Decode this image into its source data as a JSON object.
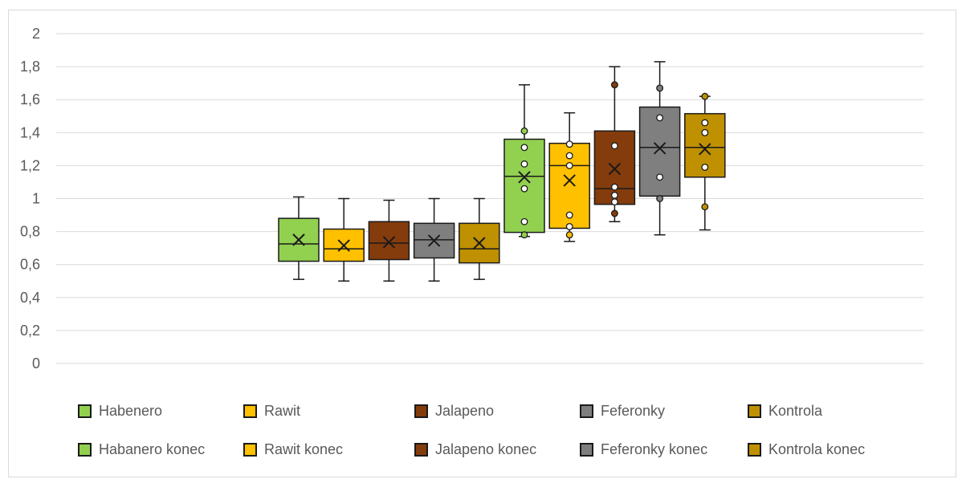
{
  "chart_data": {
    "type": "boxplot",
    "ylim": [
      0,
      2
    ],
    "y_ticks": [
      "0",
      "0,2",
      "0,4",
      "0,6",
      "0,8",
      "1",
      "1,2",
      "1,4",
      "1,6",
      "1,8",
      "2"
    ],
    "gridlines": true,
    "legend_position": "bottom",
    "series": [
      {
        "name": "Habenero",
        "color": "#92d050",
        "min": 0.51,
        "q1": 0.62,
        "median": 0.725,
        "q3": 0.88,
        "max": 1.01,
        "mean": 0.75,
        "outliers": []
      },
      {
        "name": "Rawit",
        "color": "#ffc000",
        "min": 0.5,
        "q1": 0.62,
        "median": 0.695,
        "q3": 0.815,
        "max": 1.0,
        "mean": 0.715,
        "outliers": []
      },
      {
        "name": "Jalapeno",
        "color": "#843c0c",
        "min": 0.5,
        "q1": 0.63,
        "median": 0.73,
        "q3": 0.86,
        "max": 0.99,
        "mean": 0.735,
        "outliers": []
      },
      {
        "name": "Feferonky",
        "color": "#7f7f7f",
        "min": 0.5,
        "q1": 0.64,
        "median": 0.75,
        "q3": 0.85,
        "max": 1.0,
        "mean": 0.745,
        "outliers": []
      },
      {
        "name": "Kontrola",
        "color": "#bf9000",
        "min": 0.51,
        "q1": 0.61,
        "median": 0.695,
        "q3": 0.85,
        "max": 1.0,
        "mean": 0.73,
        "outliers": []
      },
      {
        "name": "Habanero konec",
        "color": "#92d050",
        "min": 0.77,
        "q1": 0.795,
        "median": 1.135,
        "q3": 1.36,
        "max": 1.69,
        "mean": 1.13,
        "outliers": [
          1.41,
          1.31,
          1.21,
          1.06,
          0.86,
          0.78
        ]
      },
      {
        "name": "Rawit konec",
        "color": "#ffc000",
        "min": 0.74,
        "q1": 0.82,
        "median": 1.2,
        "q3": 1.335,
        "max": 1.52,
        "mean": 1.11,
        "outliers": [
          1.33,
          1.26,
          1.2,
          0.9,
          0.83,
          0.78
        ]
      },
      {
        "name": "Jalapeno konec",
        "color": "#843c0c",
        "min": 0.86,
        "q1": 0.965,
        "median": 1.06,
        "q3": 1.41,
        "max": 1.8,
        "mean": 1.18,
        "outliers": [
          1.69,
          1.32,
          1.07,
          1.02,
          0.98,
          0.91
        ]
      },
      {
        "name": "Feferonky konec",
        "color": "#7f7f7f",
        "min": 0.78,
        "q1": 1.015,
        "median": 1.31,
        "q3": 1.555,
        "max": 1.83,
        "mean": 1.305,
        "outliers": [
          1.67,
          1.49,
          1.13,
          1.0
        ]
      },
      {
        "name": "Kontrola konec",
        "color": "#bf9000",
        "min": 0.81,
        "q1": 1.13,
        "median": 1.31,
        "q3": 1.515,
        "max": 1.62,
        "mean": 1.3,
        "outliers": [
          1.62,
          1.46,
          1.4,
          1.19,
          0.95
        ]
      }
    ]
  }
}
